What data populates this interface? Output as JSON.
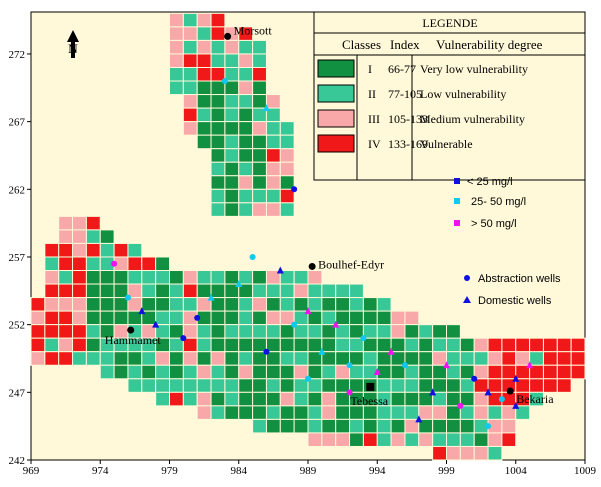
{
  "map": {
    "background": "#FFF9D9",
    "x_ticks": [
      "969",
      "974",
      "979",
      "984",
      "989",
      "994",
      "999",
      "1004",
      "1009"
    ],
    "y_ticks": [
      "272",
      "267",
      "262",
      "257",
      "252",
      "247",
      "242"
    ],
    "north_label": "N",
    "colors": {
      "I": "#109040",
      "II": "#38C898",
      "III": "#F8A8A8",
      "IV": "#F01818"
    }
  },
  "legend": {
    "title": "LEGENDE",
    "col_classes": "Classes",
    "col_index": "Index",
    "col_degree": "Vulnerability degree",
    "rows": [
      {
        "cls": "I",
        "index": "66-77",
        "degree": "Very low vulnerability",
        "color": "#109040"
      },
      {
        "cls": "II",
        "index": "77-105",
        "degree": "Low vulnerability",
        "color": "#38C898"
      },
      {
        "cls": "III",
        "index": "105-133",
        "degree": "Medium vulnerability",
        "color": "#F8A8A8"
      },
      {
        "cls": "IV",
        "index": "133-169",
        "degree": "Vulnerable",
        "color": "#F01818"
      }
    ]
  },
  "nitrate_legend": [
    {
      "label": "< 25 mg/l",
      "color": "#1010E0"
    },
    {
      "label": "25- 50 mg/l",
      "color": "#10C8F0"
    },
    {
      "label": "> 50 mg/l",
      "color": "#F010F0"
    }
  ],
  "well_legend": {
    "abstraction": "Abstraction wells",
    "domestic": "Domestic wells"
  },
  "towns": [
    {
      "name": "Morsott",
      "x": 983.2,
      "y": 273.3
    },
    {
      "name": "Boulhef-Edyr",
      "x": 989.3,
      "y": 256.3
    },
    {
      "name": "Hammamet",
      "x": 976.2,
      "y": 251.6
    },
    {
      "name": "Tebessa",
      "x": 993.5,
      "y": 247.4
    },
    {
      "name": "Bekaria",
      "x": 1003.6,
      "y": 247.1
    }
  ]
}
